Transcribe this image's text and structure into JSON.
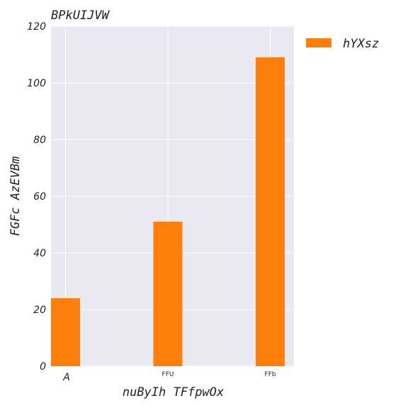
{
  "chart_data": {
    "type": "bar",
    "title": "BPkUIJVW",
    "xlabel": "nuByIh TFfpwOx",
    "ylabel": "FGFc AzEVBm",
    "categories": [
      "A",
      "FFU",
      "FFb"
    ],
    "series": [
      {
        "name": "hYXsz",
        "values": [
          24,
          51,
          109
        ],
        "color": "#ff7f0e"
      }
    ],
    "ylim": [
      0,
      120
    ],
    "yticks": [
      0,
      20,
      40,
      60,
      80,
      100,
      120
    ],
    "grid": true,
    "legend_position": "outside-top-right",
    "background_color": "#e9e9f1",
    "grid_color": "#ffffff"
  }
}
